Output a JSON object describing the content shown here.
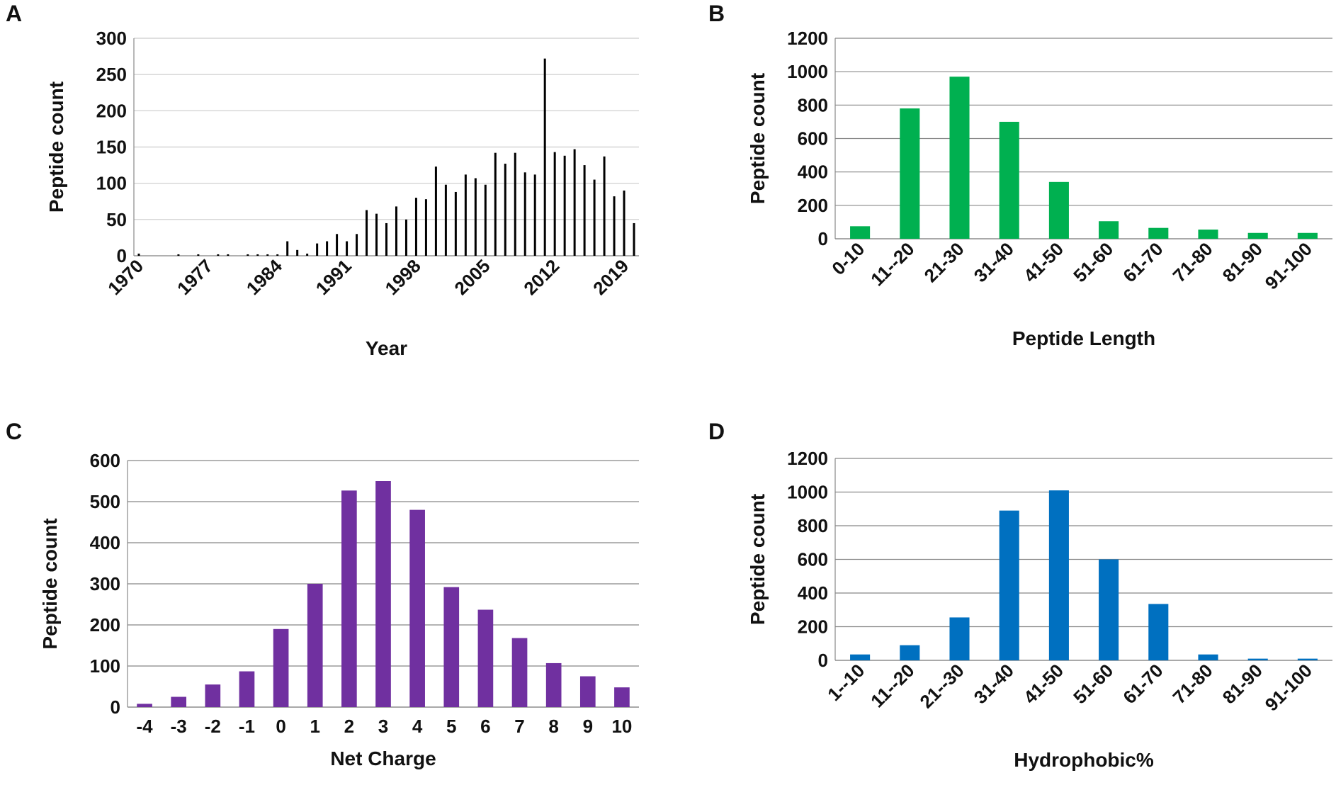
{
  "chart_data": [
    {
      "type": "bar",
      "panel": "A",
      "xlabel": "Year",
      "ylabel": "Peptide count",
      "color": "#000000",
      "x": [
        1970,
        1971,
        1972,
        1973,
        1974,
        1975,
        1976,
        1977,
        1978,
        1979,
        1980,
        1981,
        1982,
        1983,
        1984,
        1985,
        1986,
        1987,
        1988,
        1989,
        1990,
        1991,
        1992,
        1993,
        1994,
        1995,
        1996,
        1997,
        1998,
        1999,
        2000,
        2001,
        2002,
        2003,
        2004,
        2005,
        2006,
        2007,
        2008,
        2009,
        2010,
        2011,
        2012,
        2013,
        2014,
        2015,
        2016,
        2017,
        2018,
        2019,
        2020
      ],
      "values": [
        3,
        0,
        0,
        0,
        2,
        0,
        2,
        0,
        2,
        2,
        0,
        2,
        2,
        2,
        2,
        20,
        8,
        3,
        17,
        20,
        30,
        20,
        30,
        63,
        58,
        45,
        68,
        50,
        80,
        78,
        123,
        98,
        88,
        112,
        107,
        98,
        142,
        127,
        142,
        115,
        112,
        272,
        143,
        138,
        147,
        125,
        105,
        137,
        82,
        90,
        45
      ],
      "xlim": [
        1969.5,
        2020.5
      ],
      "xticks": [
        1970,
        1977,
        1984,
        1991,
        1998,
        2005,
        2012,
        2019
      ],
      "ylim": [
        0,
        300
      ],
      "yticks": [
        0,
        50,
        100,
        150,
        200,
        250,
        300
      ],
      "grid": true
    },
    {
      "type": "bar",
      "panel": "B",
      "xlabel": "Peptide Length",
      "ylabel": "Peptide count",
      "color": "#00b050",
      "categories": [
        "0-10",
        "11--20",
        "21-30",
        "31-40",
        "41-50",
        "51-60",
        "61-70",
        "71-80",
        "81-90",
        "91-100"
      ],
      "values": [
        75,
        780,
        970,
        700,
        340,
        105,
        65,
        55,
        35,
        35
      ],
      "ylim": [
        0,
        1200
      ],
      "yticks": [
        0,
        200,
        400,
        600,
        800,
        1000,
        1200
      ],
      "grid": true
    },
    {
      "type": "bar",
      "panel": "C",
      "xlabel": "Net Charge",
      "ylabel": "Peptide count",
      "color": "#7030a0",
      "categories": [
        "-4",
        "-3",
        "-2",
        "-1",
        "0",
        "1",
        "2",
        "3",
        "4",
        "5",
        "6",
        "7",
        "8",
        "9",
        "10"
      ],
      "values": [
        8,
        25,
        55,
        87,
        190,
        300,
        527,
        550,
        480,
        292,
        237,
        168,
        107,
        75,
        48
      ],
      "ylim": [
        0,
        600
      ],
      "yticks": [
        0,
        100,
        200,
        300,
        400,
        500,
        600
      ],
      "grid": true
    },
    {
      "type": "bar",
      "panel": "D",
      "xlabel": "Hydrophobic%",
      "ylabel": "Peptide count",
      "color": "#0070c0",
      "categories": [
        "1--10",
        "11--20",
        "21--30",
        "31-40",
        "41-50",
        "51-60",
        "61-70",
        "71-80",
        "81-90",
        "91-100"
      ],
      "values": [
        35,
        90,
        255,
        890,
        1010,
        600,
        335,
        35,
        10,
        10
      ],
      "ylim": [
        0,
        1200
      ],
      "yticks": [
        0,
        200,
        400,
        600,
        800,
        1000,
        1200
      ],
      "grid": true
    }
  ]
}
